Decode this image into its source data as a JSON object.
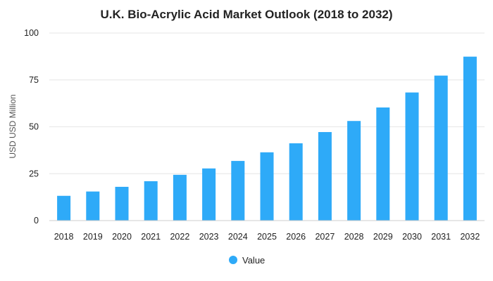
{
  "chart_data": {
    "type": "bar",
    "title": "U.K. Bio-Acrylic Acid Market Outlook (2018 to 2032)",
    "ylabel": "USD USD Million",
    "xlabel": "",
    "categories": [
      "2018",
      "2019",
      "2020",
      "2021",
      "2022",
      "2023",
      "2024",
      "2025",
      "2026",
      "2027",
      "2028",
      "2029",
      "2030",
      "2031",
      "2032"
    ],
    "series": [
      {
        "name": "Value",
        "color": "#2eaaf8",
        "values": [
          13.2,
          15.5,
          18.0,
          21.0,
          24.4,
          27.8,
          31.8,
          36.4,
          41.2,
          47.2,
          53.1,
          60.3,
          68.3,
          77.3,
          87.4
        ]
      }
    ],
    "ylim": [
      0,
      100
    ],
    "yticks": [
      0,
      25,
      50,
      75,
      100
    ],
    "grid": true,
    "legend_position": "bottom"
  }
}
